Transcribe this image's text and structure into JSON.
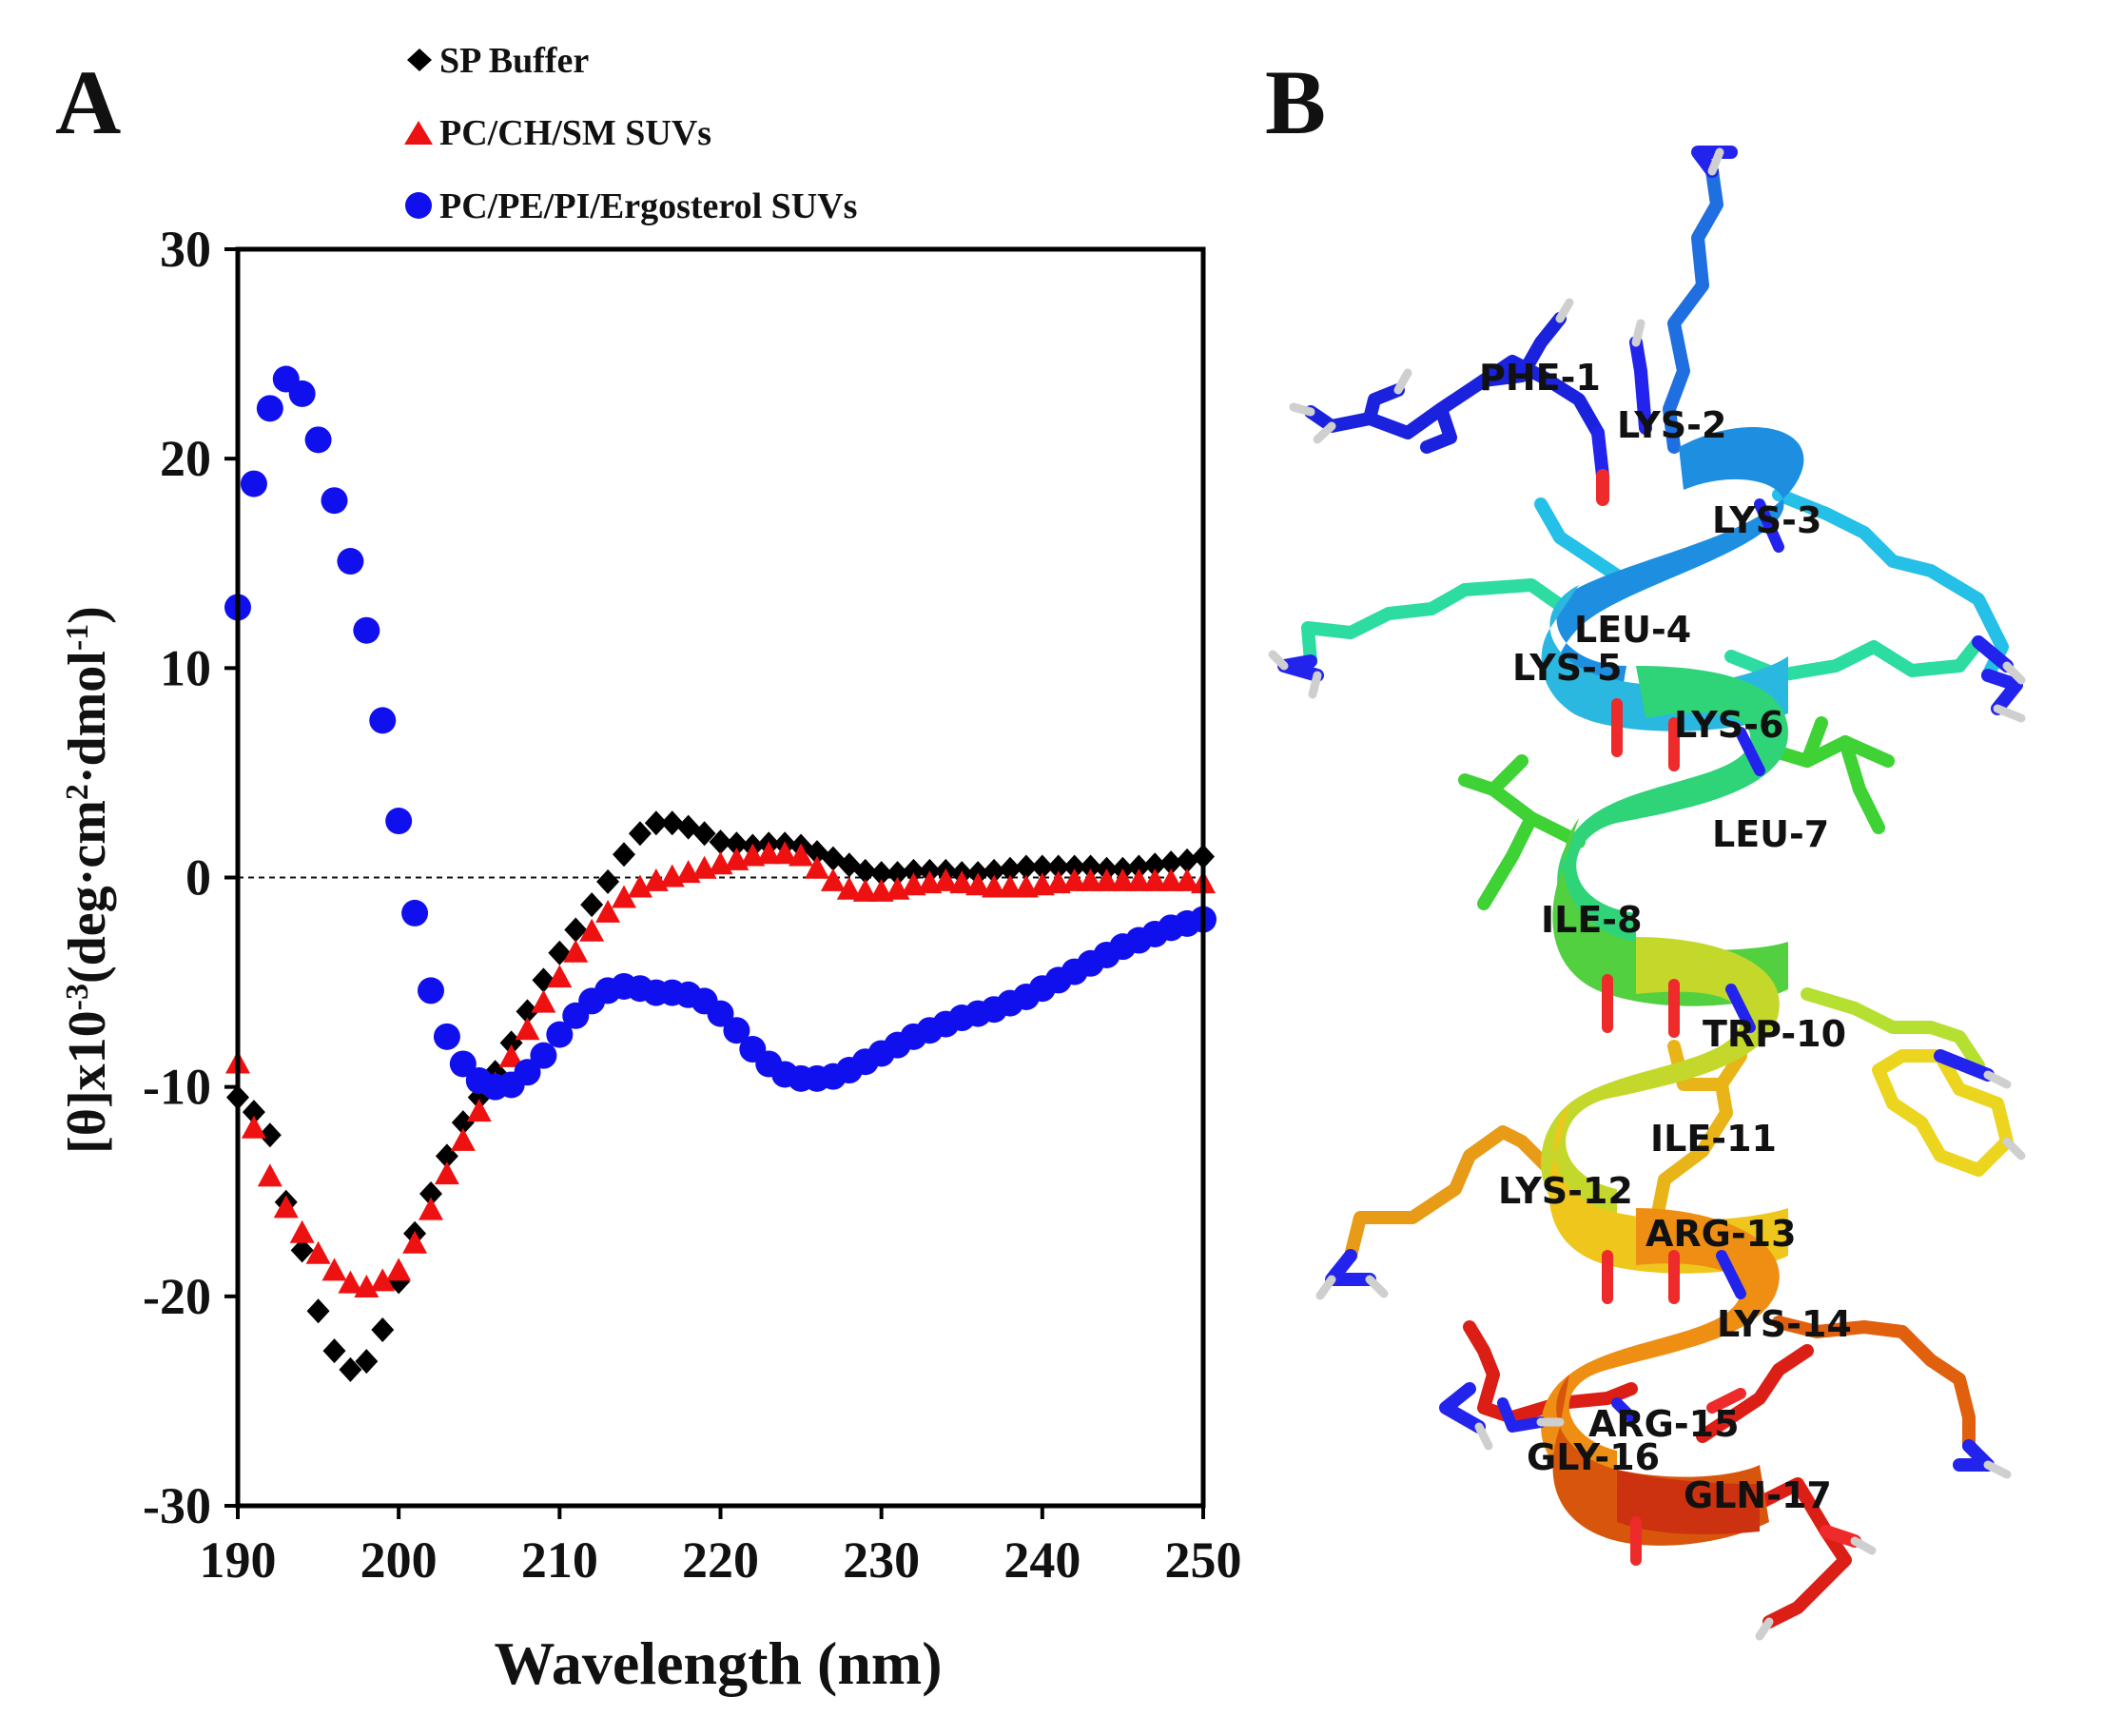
{
  "panel_a_label": "A",
  "panel_b_label": "B",
  "chart_data": {
    "type": "scatter",
    "title": "",
    "xlabel": "Wavelength (nm)",
    "ylabel_parts": [
      "[θ]x10",
      "-3",
      "(deg·cm",
      "2",
      "·dmol",
      "-1",
      ")"
    ],
    "xlim": [
      190,
      250
    ],
    "ylim": [
      -30,
      30
    ],
    "xticks": [
      "190",
      "200",
      "210",
      "220",
      "230",
      "240",
      "250"
    ],
    "yticks": [
      "30",
      "20",
      "10",
      "0",
      "-10",
      "-20",
      "-30"
    ],
    "zero_line": true,
    "legend_placement": "top",
    "series": [
      {
        "name": "SP Buffer",
        "marker": "diamond",
        "color": "#000000",
        "x": [
          190,
          191,
          192,
          193,
          194,
          195,
          196,
          197,
          198,
          199,
          200,
          201,
          202,
          203,
          204,
          205,
          206,
          207,
          208,
          209,
          210,
          211,
          212,
          213,
          214,
          215,
          216,
          217,
          218,
          219,
          220,
          221,
          222,
          223,
          224,
          225,
          226,
          227,
          228,
          229,
          230,
          231,
          232,
          233,
          234,
          235,
          236,
          237,
          238,
          239,
          240,
          241,
          242,
          243,
          244,
          245,
          246,
          247,
          248,
          249,
          250
        ],
        "y": [
          -10.5,
          -11.2,
          -12.3,
          -15.5,
          -17.8,
          -20.7,
          -22.6,
          -23.5,
          -23.1,
          -21.6,
          -19.3,
          -17.0,
          -15.1,
          -13.3,
          -11.7,
          -10.5,
          -9.3,
          -7.9,
          -6.4,
          -4.9,
          -3.6,
          -2.5,
          -1.3,
          -0.2,
          1.1,
          2.1,
          2.6,
          2.6,
          2.4,
          2.1,
          1.7,
          1.6,
          1.5,
          1.6,
          1.6,
          1.5,
          1.2,
          0.9,
          0.6,
          0.3,
          0.2,
          0.2,
          0.3,
          0.3,
          0.3,
          0.2,
          0.2,
          0.3,
          0.4,
          0.5,
          0.5,
          0.5,
          0.5,
          0.5,
          0.4,
          0.4,
          0.5,
          0.6,
          0.7,
          0.8,
          1.0
        ]
      },
      {
        "name": "PC/CH/SM SUVs",
        "marker": "triangle",
        "color": "#ee1111",
        "x": [
          190,
          191,
          192,
          193,
          194,
          195,
          196,
          197,
          198,
          199,
          200,
          201,
          202,
          203,
          204,
          205,
          206,
          207,
          208,
          209,
          210,
          211,
          212,
          213,
          214,
          215,
          216,
          217,
          218,
          219,
          220,
          221,
          222,
          223,
          224,
          225,
          226,
          227,
          228,
          229,
          230,
          231,
          232,
          233,
          234,
          235,
          236,
          237,
          238,
          239,
          240,
          241,
          242,
          243,
          244,
          245,
          246,
          247,
          248,
          249,
          250
        ],
        "y": [
          -8.9,
          -12.0,
          -14.3,
          -15.8,
          -17.0,
          -18.0,
          -18.8,
          -19.4,
          -19.6,
          -19.3,
          -18.8,
          -17.5,
          -15.9,
          -14.2,
          -12.6,
          -11.2,
          -9.9,
          -8.6,
          -7.3,
          -6.0,
          -4.8,
          -3.6,
          -2.6,
          -1.7,
          -1.0,
          -0.5,
          -0.2,
          0.0,
          0.2,
          0.4,
          0.6,
          0.8,
          1.0,
          1.1,
          1.1,
          1.0,
          0.4,
          -0.2,
          -0.6,
          -0.7,
          -0.7,
          -0.6,
          -0.4,
          -0.3,
          -0.2,
          -0.3,
          -0.4,
          -0.5,
          -0.5,
          -0.5,
          -0.4,
          -0.3,
          -0.2,
          -0.2,
          -0.2,
          -0.2,
          -0.2,
          -0.2,
          -0.2,
          -0.2,
          -0.3
        ]
      },
      {
        "name": "PC/PE/PI/Ergosterol SUVs",
        "marker": "circle",
        "color": "#1010ee",
        "x": [
          190,
          191,
          192,
          193,
          194,
          195,
          196,
          197,
          198,
          199,
          200,
          201,
          202,
          203,
          204,
          205,
          206,
          207,
          208,
          209,
          210,
          211,
          212,
          213,
          214,
          215,
          216,
          217,
          218,
          219,
          220,
          221,
          222,
          223,
          224,
          225,
          226,
          227,
          228,
          229,
          230,
          231,
          232,
          233,
          234,
          235,
          236,
          237,
          238,
          239,
          240,
          241,
          242,
          243,
          244,
          245,
          246,
          247,
          248,
          249,
          250
        ],
        "y": [
          12.9,
          18.8,
          22.4,
          23.8,
          23.1,
          20.9,
          18.0,
          15.1,
          11.8,
          7.5,
          2.7,
          -1.7,
          -5.4,
          -7.6,
          -8.9,
          -9.7,
          -10.0,
          -9.9,
          -9.3,
          -8.5,
          -7.5,
          -6.6,
          -5.9,
          -5.4,
          -5.2,
          -5.3,
          -5.5,
          -5.5,
          -5.6,
          -5.9,
          -6.5,
          -7.3,
          -8.2,
          -8.9,
          -9.4,
          -9.6,
          -9.6,
          -9.5,
          -9.2,
          -8.8,
          -8.4,
          -8.0,
          -7.6,
          -7.3,
          -7.0,
          -6.7,
          -6.5,
          -6.3,
          -6.0,
          -5.7,
          -5.3,
          -4.9,
          -4.5,
          -4.1,
          -3.7,
          -3.3,
          -3.0,
          -2.7,
          -2.4,
          -2.2,
          -2.0
        ]
      }
    ]
  },
  "structure_b": {
    "residue_labels": [
      "PHE-1",
      "LYS-2",
      "LYS-3",
      "LEU-4",
      "LYS-5",
      "LYS-6",
      "LEU-7",
      "ILE-8",
      "TRP-10",
      "ILE-11",
      "LYS-12",
      "ARG-13",
      "LYS-14",
      "ARG-15",
      "GLY-16",
      "GLN-17"
    ],
    "colors": {
      "n_term": "#1a22dd",
      "blue2": "#1f6fe0",
      "cyan": "#25c0e8",
      "teal": "#2cdca0",
      "green": "#3ed235",
      "yellowgreen": "#b6e031",
      "yellow": "#ecd51e",
      "orange": "#e89b17",
      "darkorange": "#e0600e",
      "red": "#dc1f16",
      "nitrogen": "#2323ee",
      "oxygen": "#ee2a2a",
      "hydrogen": "#e6e6e6"
    }
  }
}
